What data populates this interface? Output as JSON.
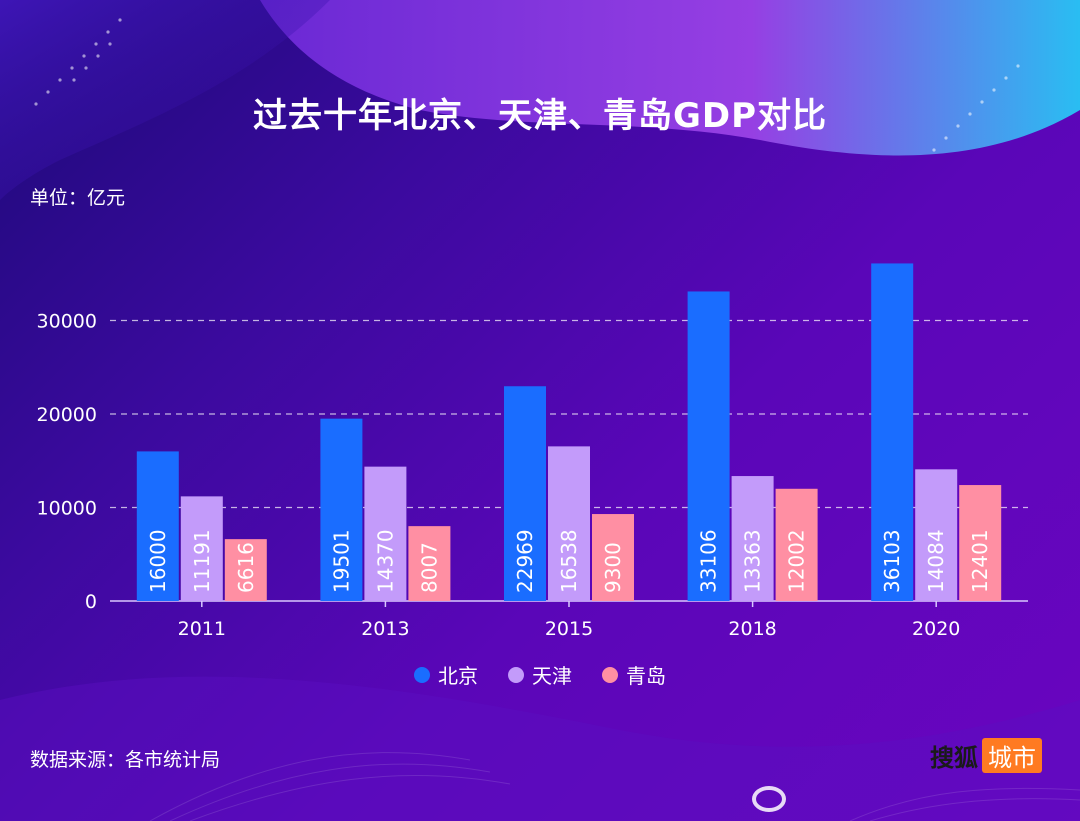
{
  "title": "过去十年北京、天津、青岛GDP对比",
  "unit_label": "单位：亿元",
  "source_label": "数据来源：各市统计局",
  "brand": {
    "name": "搜狐",
    "tag": "城市"
  },
  "colors": {
    "beijing": "#1a6dff",
    "tianjin": "#c39bfa",
    "qingdao": "#ff8fa3",
    "brand_tag": "#ff7a21"
  },
  "chart_data": {
    "type": "bar",
    "categories": [
      "2011",
      "2013",
      "2015",
      "2018",
      "2020"
    ],
    "series": [
      {
        "name": "北京",
        "values": [
          16000,
          19501,
          22969,
          33106,
          36103
        ],
        "color": "#1a6dff"
      },
      {
        "name": "天津",
        "values": [
          11191,
          14370,
          16538,
          13363,
          14084
        ],
        "color": "#c39bfa"
      },
      {
        "name": "青岛",
        "values": [
          6616,
          8007,
          9300,
          12002,
          12401
        ],
        "color": "#ff8fa3"
      }
    ],
    "yticks": [
      0,
      10000,
      20000,
      30000
    ],
    "ylim": [
      0,
      40000
    ],
    "grid": true,
    "legend_position": "bottom"
  }
}
